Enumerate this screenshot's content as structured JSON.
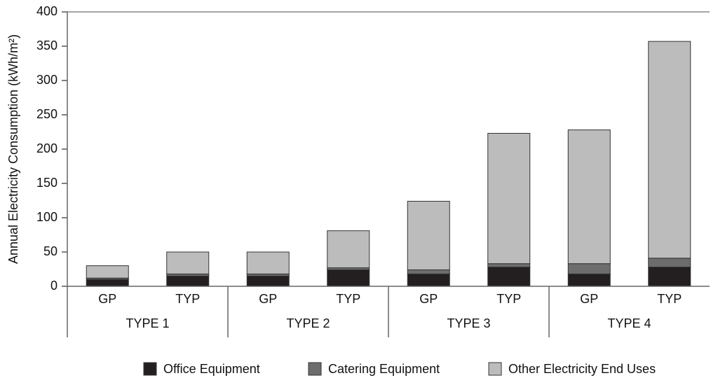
{
  "chart_data": {
    "type": "stacked-bar",
    "y_label": "Annual Electricity Consumption (kWh/m²)",
    "categories": [
      "GP",
      "TYP",
      "GP",
      "TYP",
      "GP",
      "TYP",
      "GP",
      "TYP"
    ],
    "groups": [
      "TYPE 1",
      "TYPE 2",
      "TYPE 3",
      "TYPE 4"
    ],
    "series": [
      {
        "name": "Office Equipment",
        "color": "#231f20",
        "values": [
          10,
          15,
          15,
          24,
          18,
          28,
          18,
          28
        ]
      },
      {
        "name": "Catering Equipment",
        "color": "#6d6d6d",
        "values": [
          2,
          3,
          3,
          3,
          6,
          5,
          15,
          13
        ]
      },
      {
        "name": "Other Electricity End Uses",
        "color": "#bcbcbc",
        "values": [
          18,
          32,
          32,
          54,
          100,
          190,
          195,
          316
        ]
      }
    ],
    "ylim": [
      0,
      400
    ],
    "yticks": [
      0,
      50,
      100,
      150,
      200,
      250,
      300,
      350,
      400
    ]
  }
}
